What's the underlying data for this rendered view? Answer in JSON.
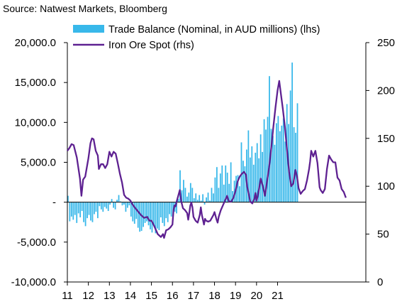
{
  "source": "Source: Natwest Markets, Bloomberg",
  "colors": {
    "bars": "#38B8EA",
    "line": "#5E2191",
    "axis": "#000000"
  },
  "chart_data": {
    "type": "bar+line",
    "x_ticks": [
      "11",
      "12",
      "13",
      "14",
      "15",
      "16",
      "17",
      "18",
      "19",
      "20",
      "21"
    ],
    "yleft": {
      "lim": [
        -10000,
        20000
      ],
      "ticks": [
        -10000,
        -5000,
        0,
        5000,
        10000,
        15000,
        20000
      ],
      "tick_labels": [
        "-10,000.0",
        "-5,000.0",
        "-",
        "5,000.0",
        "10,000.0",
        "15,000.0",
        "20,000.0"
      ]
    },
    "yright": {
      "lim": [
        0,
        250
      ],
      "ticks": [
        0,
        50,
        100,
        150,
        200,
        250
      ],
      "tick_labels": [
        "0",
        "50",
        "100",
        "150",
        "200",
        "250"
      ]
    },
    "legend": [
      {
        "label": "Trade Balance (Nominal, in AUD millions) (lhs)",
        "kind": "bar"
      },
      {
        "label": "Iron Ore Spot (rhs)",
        "kind": "line"
      }
    ],
    "series": [
      {
        "name": "Trade Balance (Nominal, in AUD millions) (lhs)",
        "type": "bar",
        "axis": "left",
        "x_start": 2011.0,
        "step": 0.08333,
        "values": [
          800,
          -2400,
          -1800,
          -2200,
          -1600,
          -2600,
          -1400,
          -1900,
          -1100,
          -2500,
          -3000,
          -2000,
          -1600,
          -2300,
          -2500,
          -1500,
          -1200,
          -2000,
          -500,
          -900,
          -1200,
          -600,
          -800,
          -1100,
          -300,
          400,
          -700,
          -900,
          300,
          900,
          100,
          -400,
          -300,
          -1200,
          -700,
          -400,
          -1800,
          -2400,
          -2700,
          -2100,
          -3200,
          -3700,
          -3600,
          -3100,
          -2600,
          -2400,
          -2900,
          -3400,
          -3800,
          -2800,
          -3900,
          -3300,
          -3500,
          -1900,
          -2600,
          -3000,
          -2000,
          -2500,
          -1500,
          -1800,
          -1800,
          -1200,
          -1400,
          400,
          4000,
          1500,
          2800,
          1800,
          700,
          1200,
          2400,
          1800,
          500,
          1100,
          300,
          900,
          200,
          1000,
          -300,
          600,
          1200,
          200,
          1800,
          1100,
          3100,
          4400,
          1800,
          3600,
          4600,
          2200,
          4600,
          3700,
          2300,
          5000,
          1400,
          2700,
          3300,
          3400,
          2000,
          7500,
          5200,
          4500,
          6600,
          9000,
          5600,
          7000,
          4700,
          6200,
          7400,
          5500,
          8500,
          6300,
          10400,
          9100,
          10700,
          15800,
          9200,
          8300,
          7200,
          9900,
          10800,
          8900,
          9600,
          10500,
          7600,
          12300,
          9800,
          14000,
          17500,
          9400,
          8700,
          12400
        ]
      },
      {
        "name": "Iron Ore Spot (rhs)",
        "type": "line",
        "axis": "right",
        "points": [
          [
            2011.0,
            137
          ],
          [
            2011.1,
            140
          ],
          [
            2011.2,
            144
          ],
          [
            2011.3,
            143
          ],
          [
            2011.45,
            130
          ],
          [
            2011.6,
            108
          ],
          [
            2011.67,
            90
          ],
          [
            2011.75,
            107
          ],
          [
            2011.85,
            110
          ],
          [
            2012.0,
            129
          ],
          [
            2012.1,
            145
          ],
          [
            2012.17,
            150
          ],
          [
            2012.25,
            149
          ],
          [
            2012.35,
            137
          ],
          [
            2012.45,
            132
          ],
          [
            2012.5,
            118
          ],
          [
            2012.6,
            123
          ],
          [
            2012.7,
            123
          ],
          [
            2012.8,
            119
          ],
          [
            2012.9,
            123
          ],
          [
            2013.0,
            136
          ],
          [
            2013.1,
            131
          ],
          [
            2013.2,
            136
          ],
          [
            2013.3,
            134
          ],
          [
            2013.4,
            124
          ],
          [
            2013.5,
            113
          ],
          [
            2013.6,
            104
          ],
          [
            2013.7,
            91
          ],
          [
            2013.8,
            88
          ],
          [
            2013.9,
            87
          ],
          [
            2014.0,
            85
          ],
          [
            2014.1,
            81
          ],
          [
            2014.2,
            78
          ],
          [
            2014.35,
            74
          ],
          [
            2014.5,
            70
          ],
          [
            2014.65,
            67
          ],
          [
            2014.8,
            68
          ],
          [
            2014.9,
            64
          ],
          [
            2015.0,
            64
          ],
          [
            2015.1,
            60
          ],
          [
            2015.2,
            55
          ],
          [
            2015.3,
            50
          ],
          [
            2015.45,
            47
          ],
          [
            2015.55,
            50
          ],
          [
            2015.6,
            46
          ],
          [
            2015.7,
            54
          ],
          [
            2015.8,
            55
          ],
          [
            2015.9,
            57
          ],
          [
            2016.0,
            60
          ],
          [
            2016.05,
            75
          ],
          [
            2016.1,
            80
          ],
          [
            2016.15,
            79
          ],
          [
            2016.2,
            84
          ],
          [
            2016.25,
            88
          ],
          [
            2016.35,
            96
          ],
          [
            2016.42,
            84
          ],
          [
            2016.5,
            77
          ],
          [
            2016.6,
            75
          ],
          [
            2016.7,
            72
          ],
          [
            2016.75,
            65
          ],
          [
            2016.8,
            72
          ],
          [
            2016.85,
            80
          ],
          [
            2016.9,
            83
          ],
          [
            2016.95,
            78
          ],
          [
            2017.0,
            68
          ],
          [
            2017.1,
            64
          ],
          [
            2017.2,
            62
          ],
          [
            2017.3,
            70
          ],
          [
            2017.35,
            78
          ],
          [
            2017.4,
            70
          ],
          [
            2017.5,
            60
          ],
          [
            2017.55,
            66
          ],
          [
            2017.6,
            64
          ],
          [
            2017.7,
            63
          ],
          [
            2017.8,
            64
          ],
          [
            2017.9,
            68
          ],
          [
            2017.95,
            70
          ],
          [
            2018.0,
            73
          ],
          [
            2018.1,
            65
          ],
          [
            2018.15,
            62
          ],
          [
            2018.2,
            68
          ],
          [
            2018.3,
            75
          ],
          [
            2018.4,
            80
          ],
          [
            2018.5,
            85
          ],
          [
            2018.6,
            90
          ],
          [
            2018.65,
            86
          ],
          [
            2018.7,
            84
          ],
          [
            2018.8,
            84
          ],
          [
            2018.9,
            88
          ],
          [
            2019.0,
            95
          ],
          [
            2019.1,
            105
          ],
          [
            2019.2,
            110
          ],
          [
            2019.3,
            113
          ],
          [
            2019.4,
            115
          ],
          [
            2019.5,
            112
          ],
          [
            2019.55,
            100
          ],
          [
            2019.6,
            95
          ],
          [
            2019.7,
            84
          ],
          [
            2019.8,
            82
          ],
          [
            2019.9,
            87
          ],
          [
            2019.95,
            93
          ],
          [
            2020.0,
            85
          ],
          [
            2020.05,
            89
          ],
          [
            2020.1,
            95
          ],
          [
            2020.2,
            108
          ],
          [
            2020.3,
            100
          ],
          [
            2020.35,
            95
          ],
          [
            2020.4,
            90
          ],
          [
            2020.5,
            105
          ],
          [
            2020.6,
            120
          ],
          [
            2020.7,
            140
          ],
          [
            2020.8,
            162
          ],
          [
            2020.9,
            182
          ],
          [
            2021.0,
            200
          ],
          [
            2021.08,
            210
          ],
          [
            2021.15,
            198
          ],
          [
            2021.25,
            181
          ],
          [
            2021.35,
            162
          ],
          [
            2021.45,
            138
          ],
          [
            2021.55,
            115
          ],
          [
            2021.65,
            100
          ],
          [
            2021.75,
            103
          ],
          [
            2021.85,
            117
          ],
          [
            2021.93,
            110
          ],
          [
            2022.0,
            98
          ],
          [
            2022.1,
            92
          ],
          [
            2022.2,
            95
          ],
          [
            2022.3,
            97
          ],
          [
            2022.4,
            106
          ],
          [
            2022.5,
            118
          ],
          [
            2022.55,
            126
          ],
          [
            2022.6,
            137
          ],
          [
            2022.7,
            131
          ],
          [
            2022.8,
            137
          ],
          [
            2022.9,
            124
          ],
          [
            2023.0,
            99
          ],
          [
            2023.05,
            96
          ],
          [
            2023.15,
            93
          ],
          [
            2023.25,
            97
          ],
          [
            2023.35,
            118
          ],
          [
            2023.45,
            132
          ],
          [
            2023.55,
            128
          ],
          [
            2023.65,
            125
          ],
          [
            2023.75,
            125
          ],
          [
            2023.85,
            109
          ],
          [
            2023.95,
            106
          ],
          [
            2024.05,
            97
          ],
          [
            2024.15,
            94
          ],
          [
            2024.25,
            88
          ]
        ]
      }
    ]
  }
}
